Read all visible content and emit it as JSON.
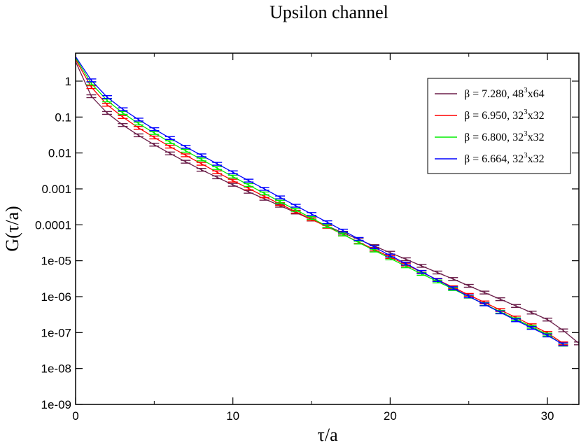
{
  "chart_data": {
    "type": "line",
    "title": "Upsilon channel",
    "xlabel": "τ/a",
    "ylabel": "G(τ/a)",
    "xlim": [
      0,
      32
    ],
    "ylim": [
      1e-09,
      6
    ],
    "yscale": "log",
    "x_ticks": [
      "0",
      "10",
      "20",
      "30"
    ],
    "y_ticks": [
      "1e-09",
      "1e-08",
      "1e-07",
      "1e-06",
      "1e-05",
      "0.0001",
      "0.001",
      "0.01",
      "0.1",
      "1"
    ],
    "grid": false,
    "legend_position": "top-right",
    "series": [
      {
        "name": "β = 7.280, 48³x64",
        "legend_main": "β = 7.280, 48",
        "legend_sup": "3",
        "legend_tail": "x64",
        "color": "#6b1f4a",
        "x": [
          0,
          1,
          2,
          3,
          4,
          5,
          6,
          7,
          8,
          9,
          10,
          11,
          12,
          13,
          14,
          15,
          16,
          17,
          18,
          19,
          20,
          21,
          22,
          23,
          24,
          25,
          26,
          27,
          28,
          29,
          30,
          31,
          32
        ],
        "y": [
          3.5,
          0.38,
          0.13,
          0.06,
          0.031,
          0.017,
          0.0097,
          0.0057,
          0.0034,
          0.0021,
          0.0013,
          0.00083,
          0.00053,
          0.00034,
          0.00022,
          0.00014,
          9.2e-05,
          6e-05,
          3.9e-05,
          2.55e-05,
          1.67e-05,
          1.1e-05,
          7.2e-06,
          4.7e-06,
          3.1e-06,
          2e-06,
          1.3e-06,
          8.5e-07,
          5.5e-07,
          3.6e-07,
          2.3e-07,
          1.15e-07,
          5e-08
        ]
      },
      {
        "name": "β = 6.950, 32³x32",
        "legend_main": "β = 6.950, 32",
        "legend_sup": "3",
        "legend_tail": "x32",
        "color": "#ff0000",
        "x": [
          0,
          1,
          2,
          3,
          4,
          5,
          6,
          7,
          8,
          9,
          10,
          11,
          12,
          13,
          14,
          15,
          16,
          17,
          18,
          19,
          20,
          21,
          22,
          23,
          24,
          25,
          26,
          27,
          28,
          29,
          30,
          31
        ],
        "y": [
          4.0,
          0.68,
          0.22,
          0.1,
          0.05,
          0.027,
          0.015,
          0.0086,
          0.005,
          0.0029,
          0.0017,
          0.00103,
          0.00062,
          0.00038,
          0.000232,
          0.000142,
          8.8e-05,
          5.4e-05,
          3.3e-05,
          2.05e-05,
          1.27e-05,
          7.8e-06,
          4.8e-06,
          2.95e-06,
          1.82e-06,
          1.12e-06,
          6.9e-07,
          4.25e-07,
          2.62e-07,
          1.6e-07,
          9.8e-08,
          5e-08
        ]
      },
      {
        "name": "β = 6.800, 32³x32",
        "legend_main": "β = 6.800, 32",
        "legend_sup": "3",
        "legend_tail": "x32",
        "color": "#00ee00",
        "x": [
          0,
          1,
          2,
          3,
          4,
          5,
          6,
          7,
          8,
          9,
          10,
          11,
          12,
          13,
          14,
          15,
          16,
          17,
          18,
          19,
          20,
          21,
          22,
          23,
          24,
          25,
          26,
          27,
          28,
          29,
          30,
          31
        ],
        "y": [
          4.4,
          0.86,
          0.29,
          0.13,
          0.066,
          0.036,
          0.02,
          0.0115,
          0.0066,
          0.0038,
          0.0022,
          0.00128,
          0.00075,
          0.00044,
          0.00026,
          0.000154,
          9.1e-05,
          5.4e-05,
          3.2e-05,
          1.92e-05,
          1.16e-05,
          7e-06,
          4.3e-06,
          2.65e-06,
          1.63e-06,
          1e-06,
          6.2e-07,
          3.8e-07,
          2.35e-07,
          1.45e-07,
          8.8e-08,
          4.6e-08
        ]
      },
      {
        "name": "β = 6.664, 32³x32",
        "legend_main": "β = 6.664, 32",
        "legend_sup": "3",
        "legend_tail": "x32",
        "color": "#0000ff",
        "x": [
          0,
          1,
          2,
          3,
          4,
          5,
          6,
          7,
          8,
          9,
          10,
          11,
          12,
          13,
          14,
          15,
          16,
          17,
          18,
          19,
          20,
          21,
          22,
          23,
          24,
          25,
          26,
          27,
          28,
          29,
          30,
          31
        ],
        "y": [
          4.8,
          1.05,
          0.36,
          0.165,
          0.085,
          0.046,
          0.026,
          0.0148,
          0.0086,
          0.005,
          0.0029,
          0.0017,
          0.001,
          0.00058,
          0.00034,
          0.0002,
          0.000118,
          6.9e-05,
          4.05e-05,
          2.38e-05,
          1.4e-05,
          8.3e-06,
          4.9e-06,
          2.9e-06,
          1.72e-06,
          1.02e-06,
          6.1e-07,
          3.65e-07,
          2.2e-07,
          1.35e-07,
          8.3e-08,
          4.7e-08
        ]
      }
    ]
  }
}
